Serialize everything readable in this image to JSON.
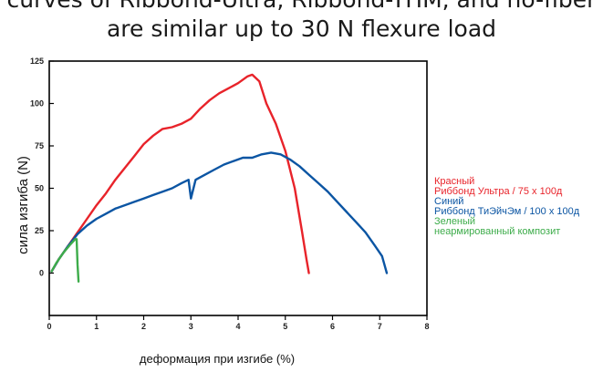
{
  "title": {
    "line1": "curves of Ribbond-Ultra, Ribbond-THM, and no-fiber",
    "line2": "are similar up to 30 N flexure load"
  },
  "colors": {
    "red": "#e8232a",
    "blue": "#0b55a3",
    "green": "#3dac4a",
    "axis": "#000000"
  },
  "chart_data": {
    "type": "line",
    "xlabel": "деформация при изгибе (%)",
    "ylabel": "сила изгиба (N)",
    "xlim": [
      0,
      8
    ],
    "ylim": [
      -25,
      125
    ],
    "x_ticks": [
      "0",
      "1",
      "2",
      "3",
      "4",
      "5",
      "6",
      "7",
      "8"
    ],
    "y_ticks": [
      "0",
      "25",
      "50",
      "75",
      "100",
      "125"
    ],
    "grid": false,
    "legend_position": "right",
    "legend": [
      {
        "color": "red",
        "lines": [
          "Красный",
          "Риббонд Ультра / 75 x 100д"
        ]
      },
      {
        "color": "blue",
        "lines": [
          "Синий",
          "Риббонд ТиЭйчЭм / 100 x 100д"
        ]
      },
      {
        "color": "green",
        "lines": [
          "Зеленый",
          "неармированный композит"
        ]
      }
    ],
    "series": [
      {
        "color": "red",
        "x": [
          0.05,
          0.2,
          0.4,
          0.6,
          0.8,
          1.0,
          1.2,
          1.4,
          1.6,
          1.8,
          2.0,
          2.2,
          2.4,
          2.6,
          2.8,
          3.0,
          3.2,
          3.4,
          3.6,
          3.8,
          4.0,
          4.2,
          4.3,
          4.45,
          4.6,
          4.8,
          5.0,
          5.2,
          5.35,
          5.45,
          5.5
        ],
        "y": [
          1,
          8,
          16,
          24,
          32,
          40,
          47,
          55,
          62,
          69,
          76,
          81,
          85,
          86,
          88,
          91,
          97,
          102,
          106,
          109,
          112,
          116,
          117,
          113,
          100,
          88,
          72,
          50,
          25,
          8,
          0
        ]
      },
      {
        "color": "blue",
        "x": [
          0.05,
          0.2,
          0.4,
          0.6,
          0.8,
          1.0,
          1.2,
          1.4,
          1.6,
          1.8,
          2.0,
          2.2,
          2.4,
          2.6,
          2.8,
          2.95,
          3.0,
          3.1,
          3.3,
          3.5,
          3.7,
          3.9,
          4.1,
          4.3,
          4.5,
          4.7,
          4.9,
          5.1,
          5.3,
          5.5,
          5.7,
          5.9,
          6.1,
          6.3,
          6.5,
          6.7,
          6.9,
          7.05,
          7.1,
          7.15
        ],
        "y": [
          1,
          8,
          16,
          23,
          28,
          32,
          35,
          38,
          40,
          42,
          44,
          46,
          48,
          50,
          53,
          55,
          44,
          55,
          58,
          61,
          64,
          66,
          68,
          68,
          70,
          71,
          70,
          67,
          63,
          58,
          53,
          48,
          42,
          36,
          30,
          24,
          16,
          10,
          5,
          0
        ]
      },
      {
        "color": "green",
        "x": [
          0.05,
          0.15,
          0.3,
          0.45,
          0.55,
          0.58,
          0.6,
          0.62
        ],
        "y": [
          1,
          6,
          12,
          17,
          20,
          20,
          5,
          -5
        ]
      }
    ]
  }
}
